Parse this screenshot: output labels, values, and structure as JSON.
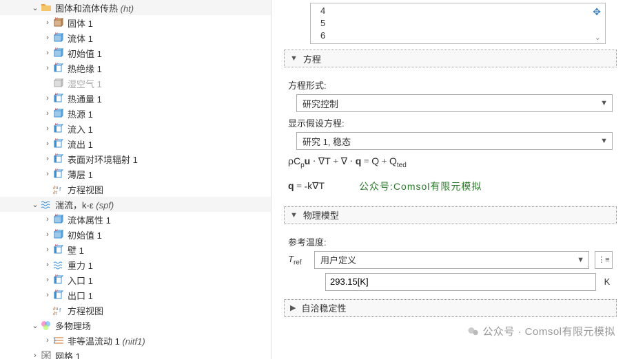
{
  "tree": {
    "heat_group": {
      "label": "固体和流体传热",
      "suffix": "(ht)"
    },
    "heat_children": [
      {
        "name": "solid",
        "label": "固体 1",
        "icon": "cube",
        "exp": ">"
      },
      {
        "name": "fluid",
        "label": "流体 1",
        "icon": "cube-blue",
        "exp": ">"
      },
      {
        "name": "init",
        "label": "初始值 1",
        "icon": "cube-blue",
        "exp": ">"
      },
      {
        "name": "insulation",
        "label": "热绝缘 1",
        "icon": "edge",
        "exp": ">"
      },
      {
        "name": "moistair",
        "label": "湿空气 1",
        "icon": "cube-gray",
        "exp": "",
        "muted": true
      },
      {
        "name": "heatflux",
        "label": "热通量 1",
        "icon": "edge",
        "exp": ">"
      },
      {
        "name": "heatsource",
        "label": "热源 1",
        "icon": "cube-blue",
        "exp": ">"
      },
      {
        "name": "inflow",
        "label": "流入 1",
        "icon": "edge",
        "exp": ">"
      },
      {
        "name": "outflow",
        "label": "流出 1",
        "icon": "edge",
        "exp": ">"
      },
      {
        "name": "surfrad",
        "label": "表面对环境辐射 1",
        "icon": "edge",
        "exp": ">"
      },
      {
        "name": "thinlayer",
        "label": "薄层 1",
        "icon": "edge",
        "exp": ">"
      },
      {
        "name": "eqview1",
        "label": "方程视图",
        "icon": "eq",
        "exp": ""
      }
    ],
    "spf_group": {
      "label": "湍流，k-ε",
      "suffix": "(spf)"
    },
    "spf_children": [
      {
        "name": "fp",
        "label": "流体属性 1",
        "icon": "cube-blue",
        "exp": ">"
      },
      {
        "name": "init2",
        "label": "初始值 1",
        "icon": "cube-blue",
        "exp": ">"
      },
      {
        "name": "wall",
        "label": "壁 1",
        "icon": "edge",
        "exp": ">"
      },
      {
        "name": "gravity",
        "label": "重力 1",
        "icon": "waves",
        "exp": ">"
      },
      {
        "name": "inlet",
        "label": "入口 1",
        "icon": "edge",
        "exp": ">"
      },
      {
        "name": "outlet",
        "label": "出口 1",
        "icon": "edge",
        "exp": ">"
      },
      {
        "name": "eqview2",
        "label": "方程视图",
        "icon": "eq",
        "exp": ""
      }
    ],
    "multi_label": "多物理场",
    "nitf_label": "非等温流动 1",
    "nitf_suffix": "(nitf1)",
    "mesh_label": "网格 1"
  },
  "nums": [
    "4",
    "5",
    "6"
  ],
  "sections": {
    "equation": "方程",
    "eq_form_label": "方程形式:",
    "eq_form_value": "研究控制",
    "show_eq_label": "显示假设方程:",
    "show_eq_value": "研究 1, 稳态",
    "eq1_html": "<span class='i'>ρC</span><sub>p</sub><span class='b'>u</span> · ∇<span class='i'>T</span> + ∇ · <span class='b'>q</span> = <span class='i'>Q</span> + <span class='i'>Q</span><sub>ted</sub>",
    "eq2_html": "<span class='b'>q</span> = -<span class='i'>k</span>∇<span class='i'>T</span>",
    "green_wm": "公众号:Comsol有限元模拟",
    "phys_model": "物理模型",
    "ref_temp_label": "参考温度:",
    "ref_var": "T",
    "ref_sub": "ref",
    "ref_combo": "用户定义",
    "ref_value": "293.15[K]",
    "ref_unit": "K",
    "stability": "自洽稳定性",
    "gray_wm": "公众号 · Comsol有限元模拟"
  },
  "colors": {
    "folder_orange": "#e8a33d",
    "blue_ico": "#3a8fd6",
    "green_text": "#2b7a2b",
    "gray_wm": "#9a9a9a"
  }
}
